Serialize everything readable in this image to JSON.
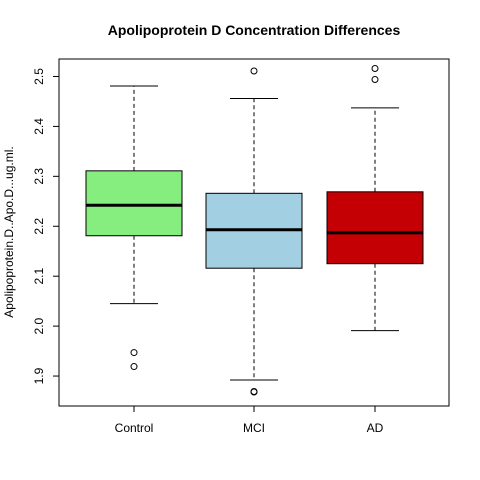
{
  "chart_data": {
    "type": "boxplot",
    "title": "Apolipoprotein D Concentration Differences",
    "xlabel": "",
    "ylabel": "Apolipoprotein.D..Apo.D...ug.ml.",
    "ylim": [
      1.84,
      2.535
    ],
    "yticks": [
      {
        "value": 1.9,
        "label": "1.9"
      },
      {
        "value": 2.0,
        "label": "2.0"
      },
      {
        "value": 2.1,
        "label": "2.1"
      },
      {
        "value": 2.2,
        "label": "2.2"
      },
      {
        "value": 2.3,
        "label": "2.3"
      },
      {
        "value": 2.4,
        "label": "2.4"
      },
      {
        "value": 2.5,
        "label": "2.5"
      }
    ],
    "grid": false,
    "groups": [
      {
        "label": "Control",
        "color": "#86ee7e",
        "whisker_low": 2.045,
        "q1": 2.181,
        "median": 2.242,
        "q3": 2.311,
        "whisker_high": 2.481,
        "outliers": [
          1.947,
          1.919
        ]
      },
      {
        "label": "MCI",
        "color": "#a2cfe2",
        "whisker_low": 1.892,
        "q1": 2.116,
        "median": 2.193,
        "q3": 2.266,
        "whisker_high": 2.456,
        "outliers": [
          2.511,
          1.869,
          1.868
        ]
      },
      {
        "label": "AD",
        "color": "#c40004",
        "whisker_low": 1.991,
        "q1": 2.125,
        "median": 2.187,
        "q3": 2.269,
        "whisker_high": 2.437,
        "outliers": [
          2.516,
          2.494
        ]
      }
    ]
  }
}
